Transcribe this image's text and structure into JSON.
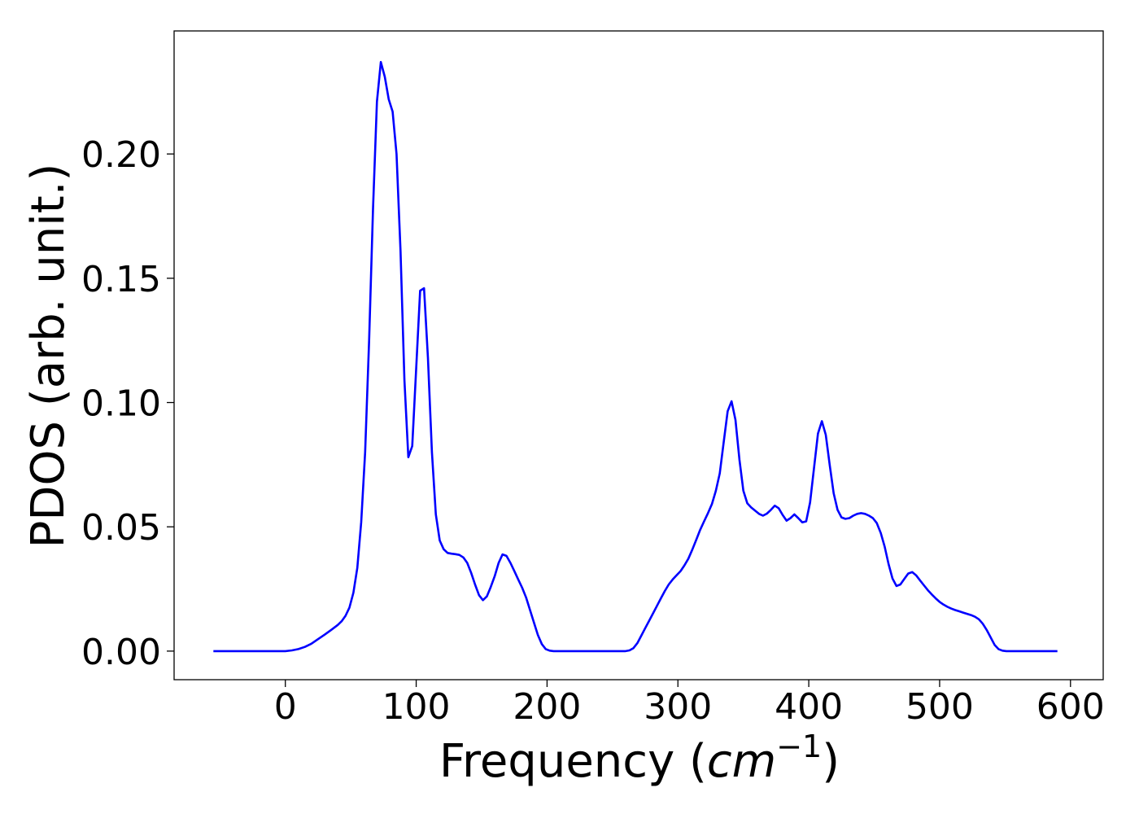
{
  "chart_data": {
    "type": "line",
    "title": "",
    "xlabel": "Frequency",
    "xlabel_unit": "cm",
    "xlabel_unit_exponent": "−1",
    "ylabel": "PDOS (arb. unit.)",
    "xlim": [
      -85,
      625
    ],
    "ylim": [
      -0.0115,
      0.2495
    ],
    "xticks": [
      0,
      100,
      200,
      300,
      400,
      500,
      600
    ],
    "xtick_labels": [
      "0",
      "100",
      "200",
      "300",
      "400",
      "500",
      "600"
    ],
    "yticks": [
      0.0,
      0.05,
      0.1,
      0.15,
      0.2
    ],
    "ytick_labels": [
      "0.00",
      "0.05",
      "0.10",
      "0.15",
      "0.20"
    ],
    "grid": false,
    "legend": "none",
    "series": [
      {
        "color": "#0000ff",
        "x": [
          -55,
          0,
          5,
          10,
          15,
          20,
          25,
          30,
          35,
          40,
          43,
          46,
          49,
          52,
          55,
          58,
          61,
          64,
          67,
          70,
          73,
          76,
          79,
          82,
          85,
          88,
          91,
          94,
          97,
          100,
          103,
          106,
          109,
          112,
          115,
          118,
          121,
          124,
          127,
          130,
          133,
          136,
          139,
          142,
          145,
          148,
          151,
          154,
          157,
          160,
          163,
          166,
          169,
          172,
          175,
          178,
          181,
          184,
          187,
          190,
          193,
          196,
          199,
          202,
          205,
          210,
          260,
          263,
          266,
          269,
          272,
          275,
          278,
          281,
          284,
          287,
          290,
          293,
          296,
          299,
          302,
          305,
          308,
          311,
          314,
          317,
          320,
          323,
          326,
          329,
          332,
          335,
          338,
          341,
          344,
          347,
          350,
          353,
          356,
          359,
          362,
          365,
          368,
          371,
          374,
          377,
          380,
          383,
          386,
          389,
          392,
          395,
          398,
          401,
          404,
          407,
          410,
          413,
          416,
          419,
          422,
          425,
          428,
          431,
          434,
          437,
          440,
          443,
          446,
          449,
          452,
          455,
          458,
          461,
          464,
          467,
          470,
          473,
          476,
          479,
          482,
          485,
          488,
          491,
          494,
          497,
          500,
          503,
          506,
          509,
          512,
          515,
          518,
          521,
          524,
          527,
          530,
          533,
          536,
          539,
          542,
          545,
          548,
          551,
          555,
          590
        ],
        "y": [
          0.0,
          0.0,
          0.0003,
          0.0008,
          0.0017,
          0.003,
          0.0048,
          0.0066,
          0.0085,
          0.0105,
          0.012,
          0.0142,
          0.0175,
          0.0235,
          0.0335,
          0.052,
          0.08,
          0.125,
          0.178,
          0.221,
          0.237,
          0.231,
          0.222,
          0.217,
          0.2,
          0.161,
          0.109,
          0.078,
          0.0825,
          0.114,
          0.145,
          0.146,
          0.118,
          0.08,
          0.055,
          0.0445,
          0.041,
          0.0395,
          0.0392,
          0.039,
          0.0387,
          0.0377,
          0.0355,
          0.0315,
          0.0268,
          0.0225,
          0.0205,
          0.022,
          0.0258,
          0.0302,
          0.0355,
          0.0389,
          0.0383,
          0.0355,
          0.0322,
          0.0288,
          0.0255,
          0.0215,
          0.0165,
          0.0115,
          0.0065,
          0.0028,
          0.0008,
          0.0002,
          0.0,
          0.0,
          0.0,
          0.0003,
          0.0012,
          0.0032,
          0.0062,
          0.0092,
          0.0122,
          0.0152,
          0.0182,
          0.0212,
          0.0242,
          0.0268,
          0.0288,
          0.0305,
          0.0322,
          0.0345,
          0.0372,
          0.0408,
          0.0448,
          0.0488,
          0.0522,
          0.0555,
          0.0592,
          0.0645,
          0.0715,
          0.084,
          0.0965,
          0.1005,
          0.093,
          0.077,
          0.0645,
          0.0595,
          0.0578,
          0.0565,
          0.0552,
          0.0545,
          0.0553,
          0.0568,
          0.0585,
          0.0575,
          0.0548,
          0.0525,
          0.0535,
          0.055,
          0.0535,
          0.0518,
          0.0522,
          0.0598,
          0.0735,
          0.0875,
          0.0925,
          0.087,
          0.075,
          0.0635,
          0.0568,
          0.0538,
          0.0532,
          0.0535,
          0.0545,
          0.0552,
          0.0555,
          0.0552,
          0.0545,
          0.0535,
          0.0515,
          0.0475,
          0.042,
          0.035,
          0.0292,
          0.0262,
          0.0268,
          0.029,
          0.0312,
          0.0318,
          0.0305,
          0.0285,
          0.0265,
          0.0245,
          0.0228,
          0.0212,
          0.0198,
          0.0187,
          0.0178,
          0.0171,
          0.0165,
          0.016,
          0.0155,
          0.015,
          0.0145,
          0.0138,
          0.0128,
          0.011,
          0.0085,
          0.0055,
          0.0025,
          0.0008,
          0.0002,
          0.0,
          0.0,
          0.0
        ]
      }
    ]
  }
}
